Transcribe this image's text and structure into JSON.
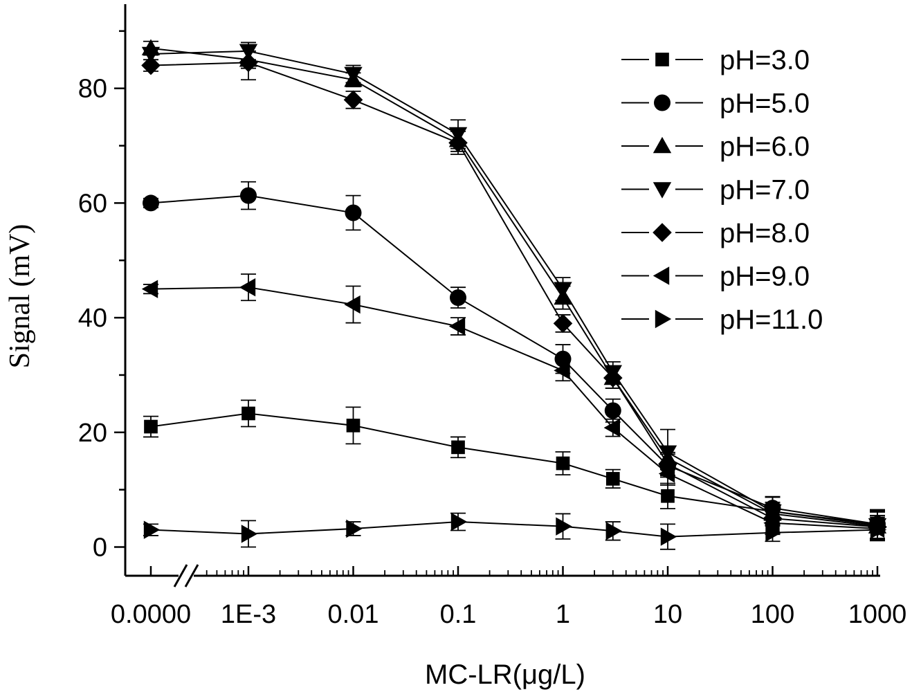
{
  "chart_data": {
    "type": "line",
    "title": "",
    "xlabel": "MC-LR(μg/L)",
    "ylabel": "Signal (mV)",
    "x_scale": "log with axis break",
    "categories": [
      "0.0000",
      "1E-3",
      "0.01",
      "0.1",
      "1",
      "3",
      "10",
      "100",
      "1000"
    ],
    "x_tick_labels": [
      "0.0000",
      "1E-3",
      "0.01",
      "0.1",
      "1",
      "10",
      "100",
      "1000"
    ],
    "y_ticks": [
      0,
      20,
      40,
      60,
      80
    ],
    "ylim": [
      -5,
      95
    ],
    "legend_position": "top-right",
    "series": [
      {
        "name": "pH=3.0",
        "marker": "square",
        "values": [
          21,
          23.3,
          21.2,
          17.4,
          14.6,
          11.9,
          8.9,
          6.2,
          4.0
        ],
        "errors": [
          1.8,
          2.3,
          3.2,
          1.8,
          2.0,
          1.6,
          2.2,
          2.5,
          2.5
        ]
      },
      {
        "name": "pH=5.0",
        "marker": "circle",
        "values": [
          60,
          61.3,
          58.3,
          43.5,
          32.8,
          23.8,
          14.2,
          6.8,
          4.0
        ],
        "errors": [
          0.8,
          2.4,
          3.0,
          1.8,
          2.5,
          2.0,
          2.0,
          2.0,
          2.5
        ]
      },
      {
        "name": "pH=6.0",
        "marker": "triangle-up",
        "values": [
          87,
          85,
          81.5,
          71,
          43.5,
          29.5,
          15.5,
          5.8,
          3.6
        ],
        "errors": [
          1.2,
          1.5,
          1.2,
          2.0,
          2.0,
          1.8,
          2.0,
          2.0,
          2.5
        ]
      },
      {
        "name": "pH=7.0",
        "marker": "triangle-down",
        "values": [
          86,
          86.5,
          82.5,
          72,
          45,
          30.5,
          16.5,
          6.2,
          3.8
        ],
        "errors": [
          1.0,
          1.5,
          1.5,
          2.5,
          2.0,
          1.8,
          4.0,
          2.5,
          2.5
        ]
      },
      {
        "name": "pH=8.0",
        "marker": "diamond",
        "values": [
          84,
          84.5,
          78,
          70.5,
          39,
          29.5,
          14.5,
          5.0,
          3.5
        ],
        "errors": [
          1.0,
          3.0,
          1.5,
          2.0,
          1.5,
          1.8,
          2.0,
          2.5,
          2.0
        ]
      },
      {
        "name": "pH=9.0",
        "marker": "triangle-left",
        "values": [
          45,
          45.3,
          42.3,
          38.5,
          30.8,
          20.8,
          12.8,
          4.2,
          3.2
        ],
        "errors": [
          0.8,
          2.3,
          3.2,
          1.5,
          1.8,
          1.5,
          2.0,
          2.0,
          2.0
        ]
      },
      {
        "name": "pH=11.0",
        "marker": "triangle-right",
        "values": [
          3.0,
          2.3,
          3.2,
          4.4,
          3.6,
          2.8,
          1.8,
          2.5,
          3.0
        ],
        "errors": [
          1.0,
          2.3,
          1.2,
          1.5,
          2.2,
          1.6,
          2.2,
          1.5,
          1.5
        ]
      }
    ]
  }
}
